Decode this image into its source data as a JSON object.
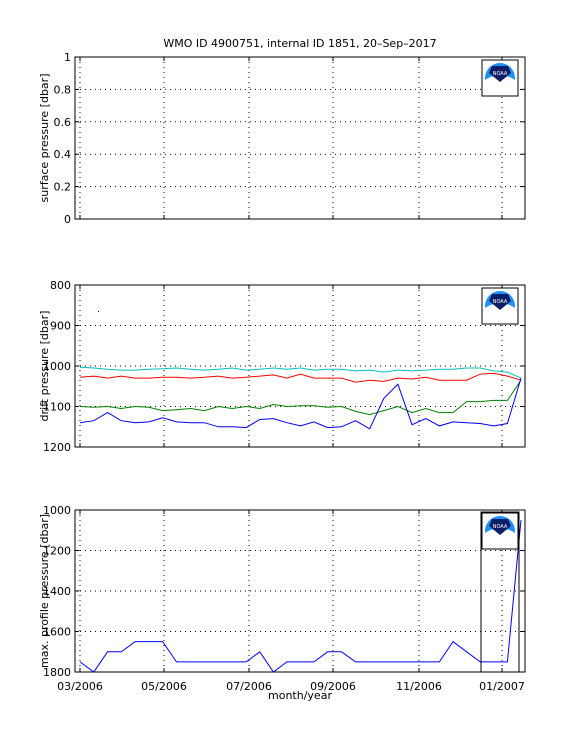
{
  "figure": {
    "title": "WMO ID 4900751, internal ID 1851, 20–Sep–2017",
    "xlabel": "month/year",
    "x_tick_labels": [
      "03/2006",
      "05/2006",
      "07/2006",
      "09/2006",
      "11/2006",
      "01/2007"
    ],
    "logo_text": "NOAA"
  },
  "chart_data": [
    {
      "type": "line",
      "ylabel": "surface pressure [dbar]",
      "ylim": [
        0,
        1
      ],
      "yticks": [
        0,
        0.2,
        0.4,
        0.6,
        0.8,
        1
      ],
      "ytick_labels": [
        "0",
        "0.2",
        "0.4",
        "0.6",
        "0.8",
        "1"
      ],
      "y_reversed": false,
      "grid": true,
      "series": []
    },
    {
      "type": "line",
      "ylabel": "drift pressure [dbar]",
      "ylim": [
        800,
        1200
      ],
      "yticks": [
        800,
        900,
        1000,
        1100,
        1200
      ],
      "ytick_labels": [
        "800",
        "900",
        "1000",
        "1100",
        "1200"
      ],
      "y_reversed": true,
      "grid": true,
      "series": [
        {
          "color": "#00bfbf",
          "x": [
            "2006-03-01",
            "2006-03-11",
            "2006-03-21",
            "2006-03-31",
            "2006-04-10",
            "2006-04-20",
            "2006-04-30",
            "2006-05-10",
            "2006-05-20",
            "2006-05-30",
            "2006-06-09",
            "2006-06-19",
            "2006-06-29",
            "2006-07-09",
            "2006-07-19",
            "2006-07-29",
            "2006-08-08",
            "2006-08-18",
            "2006-08-28",
            "2006-09-07",
            "2006-09-17",
            "2006-09-27",
            "2006-10-07",
            "2006-10-17",
            "2006-10-27",
            "2006-11-06",
            "2006-11-16",
            "2006-11-26",
            "2006-12-06",
            "2006-12-16",
            "2006-12-26",
            "2007-01-05",
            "2007-01-15"
          ],
          "y": [
            1003,
            1005,
            1008,
            1010,
            1010,
            1008,
            1007,
            1005,
            1008,
            1010,
            1008,
            1005,
            1010,
            1008,
            1005,
            1008,
            1005,
            1010,
            1008,
            1008,
            1012,
            1010,
            1015,
            1010,
            1012,
            1010,
            1008,
            1008,
            1005,
            1005,
            1012,
            1015,
            1030
          ]
        },
        {
          "color": "#ff0000",
          "x": [
            "2006-03-01",
            "2006-03-11",
            "2006-03-21",
            "2006-03-31",
            "2006-04-10",
            "2006-04-20",
            "2006-04-30",
            "2006-05-10",
            "2006-05-20",
            "2006-05-30",
            "2006-06-09",
            "2006-06-19",
            "2006-06-29",
            "2006-07-09",
            "2006-07-19",
            "2006-07-29",
            "2006-08-08",
            "2006-08-18",
            "2006-08-28",
            "2006-09-07",
            "2006-09-17",
            "2006-09-27",
            "2006-10-07",
            "2006-10-17",
            "2006-10-27",
            "2006-11-06",
            "2006-11-16",
            "2006-11-26",
            "2006-12-06",
            "2006-12-16",
            "2006-12-26",
            "2007-01-05",
            "2007-01-15"
          ],
          "y": [
            1028,
            1025,
            1030,
            1025,
            1030,
            1030,
            1028,
            1028,
            1030,
            1028,
            1025,
            1030,
            1028,
            1025,
            1022,
            1030,
            1020,
            1030,
            1030,
            1030,
            1040,
            1035,
            1038,
            1030,
            1032,
            1028,
            1035,
            1035,
            1035,
            1020,
            1018,
            1025,
            1035
          ]
        },
        {
          "color": "#008000",
          "x": [
            "2006-03-01",
            "2006-03-11",
            "2006-03-21",
            "2006-03-31",
            "2006-04-10",
            "2006-04-20",
            "2006-04-30",
            "2006-05-10",
            "2006-05-20",
            "2006-05-30",
            "2006-06-09",
            "2006-06-19",
            "2006-06-29",
            "2006-07-09",
            "2006-07-19",
            "2006-07-29",
            "2006-08-08",
            "2006-08-18",
            "2006-08-28",
            "2006-09-07",
            "2006-09-17",
            "2006-09-27",
            "2006-10-07",
            "2006-10-17",
            "2006-10-27",
            "2006-11-06",
            "2006-11-16",
            "2006-11-26",
            "2006-12-06",
            "2006-12-16",
            "2006-12-26",
            "2007-01-05",
            "2007-01-15"
          ],
          "y": [
            1100,
            1102,
            1100,
            1105,
            1100,
            1102,
            1110,
            1108,
            1105,
            1110,
            1100,
            1105,
            1100,
            1105,
            1095,
            1100,
            1098,
            1098,
            1102,
            1100,
            1112,
            1120,
            1110,
            1100,
            1115,
            1105,
            1115,
            1115,
            1088,
            1088,
            1085,
            1085,
            1035
          ]
        },
        {
          "color": "#0000ff",
          "x": [
            "2006-03-01",
            "2006-03-11",
            "2006-03-21",
            "2006-03-31",
            "2006-04-10",
            "2006-04-20",
            "2006-04-30",
            "2006-05-10",
            "2006-05-20",
            "2006-05-30",
            "2006-06-09",
            "2006-06-19",
            "2006-06-29",
            "2006-07-09",
            "2006-07-19",
            "2006-07-29",
            "2006-08-08",
            "2006-08-18",
            "2006-08-28",
            "2006-09-07",
            "2006-09-17",
            "2006-09-27",
            "2006-10-07",
            "2006-10-17",
            "2006-10-27",
            "2006-11-06",
            "2006-11-16",
            "2006-11-26",
            "2006-12-06",
            "2006-12-16",
            "2006-12-26",
            "2007-01-05",
            "2007-01-15"
          ],
          "y": [
            1140,
            1135,
            1115,
            1135,
            1140,
            1138,
            1128,
            1138,
            1140,
            1140,
            1150,
            1150,
            1152,
            1132,
            1130,
            1140,
            1148,
            1138,
            1152,
            1150,
            1135,
            1155,
            1080,
            1045,
            1145,
            1130,
            1148,
            1138,
            1140,
            1142,
            1148,
            1142,
            1030
          ]
        }
      ]
    },
    {
      "type": "line",
      "ylabel": "max. profile pressure [dbar]",
      "ylim": [
        1000,
        1800
      ],
      "yticks": [
        1000,
        1200,
        1400,
        1600,
        1800
      ],
      "ytick_labels": [
        "1000",
        "1200",
        "1400",
        "1600",
        "1800"
      ],
      "y_reversed": true,
      "grid": true,
      "series": [
        {
          "color": "#0000ff",
          "x": [
            "2006-03-01",
            "2006-03-11",
            "2006-03-21",
            "2006-03-31",
            "2006-04-10",
            "2006-04-20",
            "2006-04-30",
            "2006-05-10",
            "2006-05-20",
            "2006-05-30",
            "2006-06-09",
            "2006-06-19",
            "2006-06-29",
            "2006-07-09",
            "2006-07-19",
            "2006-07-29",
            "2006-08-08",
            "2006-08-18",
            "2006-08-28",
            "2006-09-07",
            "2006-09-17",
            "2006-09-27",
            "2006-10-07",
            "2006-10-17",
            "2006-10-27",
            "2006-11-06",
            "2006-11-16",
            "2006-11-26",
            "2006-12-06",
            "2006-12-16",
            "2006-12-26",
            "2007-01-05",
            "2007-01-15"
          ],
          "y": [
            1750,
            1800,
            1700,
            1700,
            1650,
            1650,
            1650,
            1750,
            1750,
            1750,
            1750,
            1750,
            1750,
            1700,
            1800,
            1750,
            1750,
            1750,
            1700,
            1700,
            1750,
            1750,
            1750,
            1750,
            1750,
            1750,
            1750,
            1650,
            1700,
            1750,
            1750,
            1750,
            1050
          ]
        }
      ]
    }
  ]
}
